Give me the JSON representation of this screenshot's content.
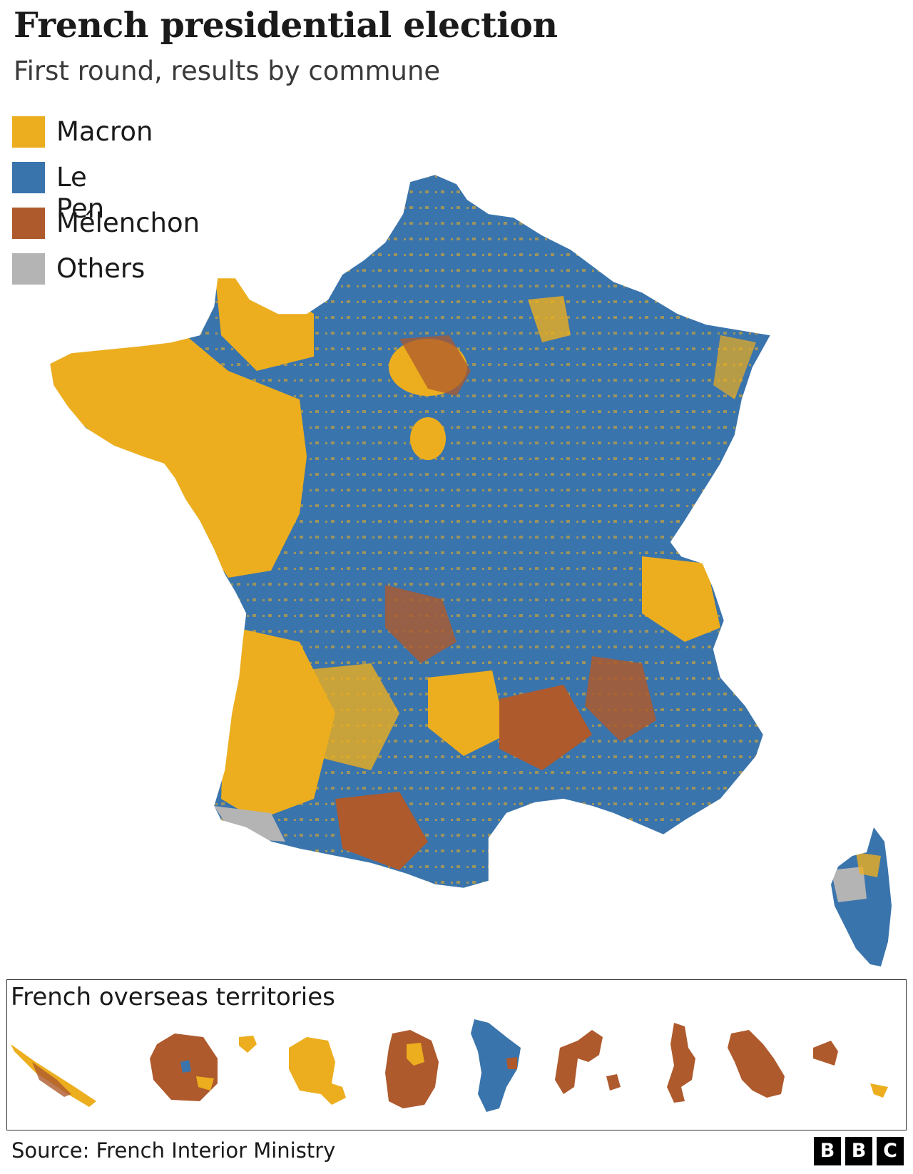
{
  "title": "French presidential election",
  "subtitle": "First round, results by commune",
  "legend": [
    {
      "label": "Macron",
      "color": "#ecae1e"
    },
    {
      "label": "Le Pen",
      "color": "#3a74ac"
    },
    {
      "label": "Mélenchon",
      "color": "#ae5a2d"
    },
    {
      "label": "Others",
      "color": "#b4b4b4"
    }
  ],
  "overseas": {
    "title": "French overseas territories"
  },
  "source": "Source: French Interior Ministry",
  "logo": [
    "B",
    "B",
    "C"
  ]
}
